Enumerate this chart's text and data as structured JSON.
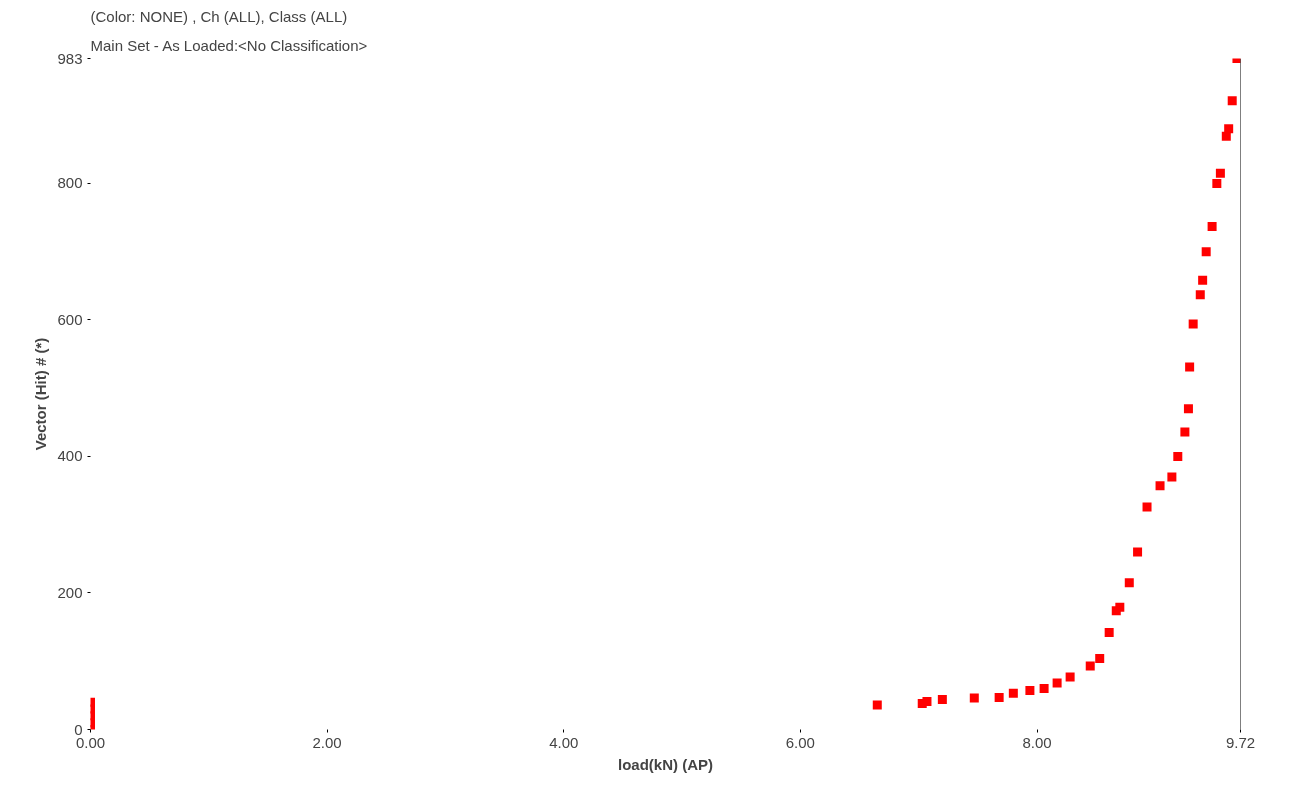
{
  "chart_data": {
    "type": "scatter",
    "title": "(Color: NONE) , Ch (ALL), Class (ALL)",
    "subtitle": "Main Set - As Loaded:<No Classification>",
    "xlabel": "load(kN) (AP)",
    "ylabel": "Vector (Hit) # (*)",
    "series": [
      {
        "color": "#ff0000",
        "x": [
          0,
          0,
          0,
          0,
          0,
          6.65,
          7.03,
          7.07,
          7.2,
          7.47,
          7.68,
          7.8,
          7.94,
          8.06,
          8.17,
          8.28,
          8.45,
          8.53,
          8.61,
          8.67,
          8.7,
          8.78,
          8.85,
          8.93,
          9.04,
          9.14,
          9.19,
          9.25,
          9.28,
          9.29,
          9.32,
          9.38,
          9.4,
          9.43,
          9.48,
          9.52,
          9.55,
          9.6,
          9.62,
          9.65,
          9.69
        ],
        "values": [
          0,
          10,
          20,
          30,
          40,
          36,
          38,
          41,
          44,
          46,
          47,
          53,
          57,
          60,
          68,
          77,
          93,
          104,
          142,
          174,
          179,
          215,
          260,
          326,
          357,
          370,
          400,
          436,
          470,
          531,
          594,
          637,
          658,
          700,
          737,
          800,
          815,
          869,
          880,
          921,
          983
        ]
      }
    ],
    "marker": "square",
    "xlim": [
      0,
      9.72
    ],
    "ylim": [
      0,
      983
    ],
    "xticks": [
      {
        "value": 0,
        "label": "0.00"
      },
      {
        "value": 2,
        "label": "2.00"
      },
      {
        "value": 4,
        "label": "4.00"
      },
      {
        "value": 6,
        "label": "6.00"
      },
      {
        "value": 8,
        "label": "8.00"
      },
      9.72
    ],
    "yticks": [
      0,
      200,
      400,
      600,
      800,
      983
    ],
    "ref_lines": [
      {
        "axis": "x",
        "value": 9.72,
        "label": null,
        "color": "#000000"
      }
    ],
    "grid": false
  }
}
